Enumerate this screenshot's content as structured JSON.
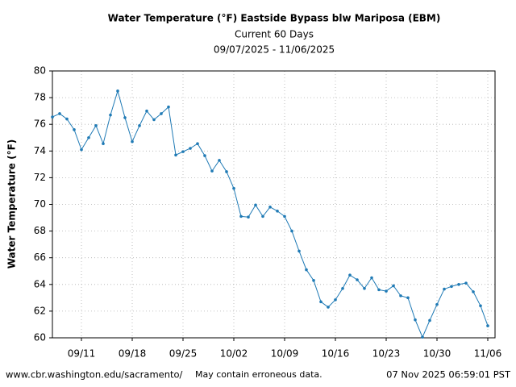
{
  "chart_data": {
    "type": "line",
    "title": "Water Temperature (°F) Eastside Bypass blw Mariposa (EBM)",
    "subtitle": "Current 60 Days",
    "date_range": "09/07/2025 - 11/06/2025",
    "y_label": "Water Temperature (°F)",
    "x": [
      "09/07",
      "09/08",
      "09/09",
      "09/10",
      "09/11",
      "09/12",
      "09/13",
      "09/14",
      "09/15",
      "09/16",
      "09/17",
      "09/18",
      "09/19",
      "09/20",
      "09/21",
      "09/22",
      "09/23",
      "09/24",
      "09/25",
      "09/26",
      "09/27",
      "09/28",
      "09/29",
      "09/30",
      "10/01",
      "10/02",
      "10/03",
      "10/04",
      "10/05",
      "10/06",
      "10/07",
      "10/08",
      "10/09",
      "10/10",
      "10/11",
      "10/12",
      "10/13",
      "10/14",
      "10/15",
      "10/16",
      "10/17",
      "10/18",
      "10/19",
      "10/20",
      "10/21",
      "10/22",
      "10/23",
      "10/24",
      "10/25",
      "10/26",
      "10/27",
      "10/28",
      "10/29",
      "10/30",
      "10/31",
      "11/01",
      "11/02",
      "11/03",
      "11/04",
      "11/05",
      "11/06"
    ],
    "series": [
      {
        "color": "#1f7ab5",
        "values": [
          76.55,
          76.8,
          76.4,
          75.6,
          74.1,
          75.0,
          75.9,
          74.55,
          76.7,
          78.5,
          76.5,
          74.7,
          75.9,
          77.0,
          76.35,
          76.8,
          77.3,
          73.7,
          73.95,
          74.2,
          74.55,
          73.65,
          72.5,
          73.3,
          72.45,
          71.2,
          69.1,
          69.05,
          69.95,
          69.1,
          69.8,
          69.5,
          69.1,
          68.0,
          66.5,
          65.1,
          64.3,
          62.7,
          62.3,
          62.85,
          63.7,
          64.7,
          64.35,
          63.7,
          64.5,
          63.6,
          63.5,
          63.9,
          63.15,
          63.0,
          61.35,
          60.05,
          61.3,
          62.5,
          63.65,
          63.85,
          64.0,
          64.1,
          63.45,
          62.4,
          60.9
        ]
      }
    ],
    "xticks": [
      "09/11",
      "09/18",
      "09/25",
      "10/02",
      "10/09",
      "10/16",
      "10/23",
      "10/30",
      "11/06"
    ],
    "ylim": [
      60,
      80
    ],
    "yticks": [
      60,
      62,
      64,
      66,
      68,
      70,
      72,
      74,
      76,
      78,
      80
    ],
    "grid": true,
    "footer_url": "www.cbr.washington.edu/sacramento/",
    "footer_note": "May contain erroneous data.",
    "timestamp": "07 Nov 2025 06:59:01 PST"
  }
}
